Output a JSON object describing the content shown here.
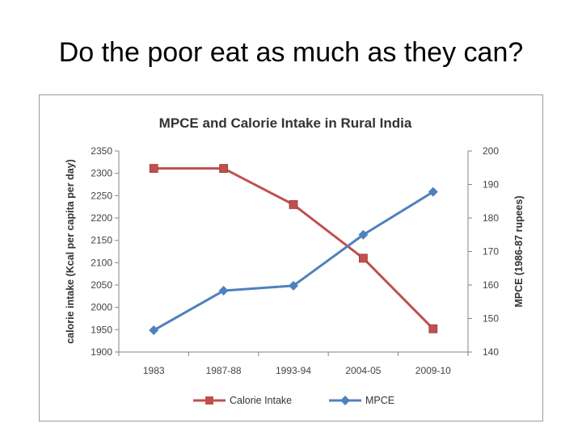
{
  "slide": {
    "title": "Do the poor eat as much as they can?"
  },
  "chart_data": {
    "type": "line",
    "title": "MPCE and Calorie Intake in Rural India",
    "categories": [
      "1983",
      "1987-88",
      "1993-94",
      "2004-05",
      "2009-10"
    ],
    "y_left": {
      "label": "calorie intake (Kcal per capita per day)",
      "ylim": [
        1900,
        2350
      ],
      "ticks": [
        1900,
        1950,
        2000,
        2050,
        2100,
        2150,
        2200,
        2250,
        2300,
        2350
      ]
    },
    "y_right": {
      "label": "MPCE (1986-87 rupees)",
      "ylim": [
        140,
        200
      ],
      "ticks": [
        140,
        150,
        160,
        170,
        180,
        190,
        200
      ]
    },
    "series": [
      {
        "name": "Calorie Intake",
        "axis": "left",
        "color": "#C0504D",
        "marker": "square",
        "values": [
          2311,
          2311,
          2230,
          2110,
          1952
        ]
      },
      {
        "name": "MPCE",
        "axis": "right",
        "color": "#4F81BD",
        "marker": "diamond",
        "values": [
          146.5,
          158.3,
          159.8,
          175.0,
          187.8
        ]
      }
    ],
    "grid": false,
    "legend_position": "bottom"
  }
}
